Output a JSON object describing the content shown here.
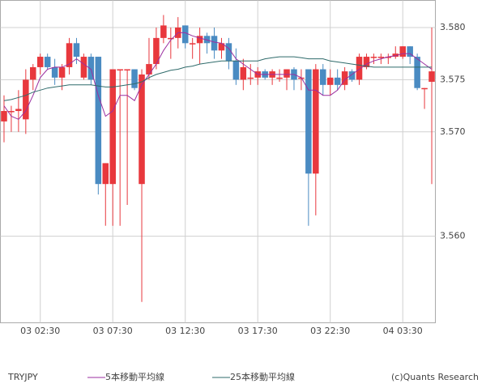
{
  "chart_data": {
    "type": "candlestick",
    "symbol": "TRYJPY",
    "credit": "(c)Quants Research",
    "up_color": "#e8383d",
    "down_color": "#4a8bc2",
    "categories": [
      null,
      null,
      null,
      null,
      null,
      "03 02:30",
      null,
      null,
      null,
      null,
      null,
      null,
      null,
      null,
      null,
      "03 07:30",
      null,
      null,
      null,
      null,
      null,
      null,
      null,
      null,
      null,
      "03 12:30",
      null,
      null,
      null,
      null,
      null,
      null,
      null,
      null,
      null,
      "03 17:30",
      null,
      null,
      null,
      null,
      null,
      null,
      null,
      null,
      null,
      "03 22:30",
      null,
      null,
      null,
      null,
      null,
      null,
      null,
      null,
      null,
      "04 03:30",
      null,
      null,
      null,
      null
    ],
    "open": [
      3.571,
      3.572,
      3.572,
      3.5712,
      3.575,
      3.5762,
      3.5772,
      3.5762,
      3.5752,
      3.5762,
      3.5785,
      3.5752,
      3.5772,
      3.5772,
      3.565,
      3.565,
      3.576,
      3.576,
      3.576,
      3.565,
      3.5755,
      3.5765,
      3.579,
      3.579,
      3.579,
      3.5802,
      3.5785,
      3.5785,
      3.5792,
      3.5792,
      3.5778,
      3.5785,
      3.5768,
      3.575,
      3.5752,
      3.5752,
      3.5758,
      3.5752,
      3.5752,
      3.5752,
      3.576,
      3.5752,
      3.576,
      3.566,
      3.576,
      3.5745,
      3.5752,
      3.5745,
      3.5758,
      3.575,
      3.5762,
      3.5772,
      3.5772,
      3.5772,
      3.5772,
      3.5772,
      3.5782,
      3.5772,
      3.5742,
      3.5748
    ],
    "high": [
      3.5735,
      3.5725,
      3.574,
      3.576,
      3.5765,
      3.5775,
      3.5775,
      3.577,
      3.5765,
      3.579,
      3.579,
      3.5775,
      3.5775,
      3.5772,
      3.567,
      3.576,
      3.576,
      3.576,
      3.576,
      3.576,
      3.579,
      3.58,
      3.5812,
      3.58,
      3.581,
      3.5802,
      3.579,
      3.58,
      3.5795,
      3.58,
      3.579,
      3.579,
      3.578,
      3.577,
      3.5765,
      3.5762,
      3.576,
      3.576,
      3.576,
      3.576,
      3.5762,
      3.576,
      3.576,
      3.5765,
      3.5765,
      3.576,
      3.576,
      3.5762,
      3.576,
      3.5775,
      3.5775,
      3.5775,
      3.5775,
      3.5775,
      3.5782,
      3.5782,
      3.5782,
      3.5775,
      3.5742,
      3.58
    ],
    "low": [
      3.569,
      3.57,
      3.57,
      3.5698,
      3.574,
      3.5755,
      3.576,
      3.5745,
      3.574,
      3.5755,
      3.5765,
      3.575,
      3.5745,
      3.564,
      3.561,
      3.561,
      3.561,
      3.563,
      3.574,
      3.5537,
      3.575,
      3.576,
      3.5785,
      3.577,
      3.578,
      3.578,
      3.577,
      3.5765,
      3.5775,
      3.577,
      3.577,
      3.576,
      3.5745,
      3.574,
      3.5745,
      3.5745,
      3.575,
      3.5745,
      3.5748,
      3.574,
      3.574,
      3.574,
      3.561,
      3.562,
      3.5735,
      3.5735,
      3.574,
      3.574,
      3.5748,
      3.5745,
      3.576,
      3.5765,
      3.5765,
      3.5765,
      3.577,
      3.577,
      3.5765,
      3.574,
      3.5722,
      3.565
    ],
    "close": [
      3.572,
      3.572,
      3.5722,
      3.575,
      3.5762,
      3.5772,
      3.5762,
      3.5752,
      3.5762,
      3.5785,
      3.5772,
      3.5772,
      3.575,
      3.565,
      3.567,
      3.576,
      3.576,
      3.576,
      3.5742,
      3.5755,
      3.5765,
      3.579,
      3.5802,
      3.579,
      3.58,
      3.5785,
      3.5785,
      3.5792,
      3.5785,
      3.5778,
      3.5785,
      3.5768,
      3.575,
      3.5762,
      3.5752,
      3.5758,
      3.5752,
      3.5758,
      3.5752,
      3.576,
      3.575,
      3.5752,
      3.566,
      3.576,
      3.5745,
      3.5752,
      3.5745,
      3.5758,
      3.575,
      3.5772,
      3.5772,
      3.5772,
      3.5772,
      3.5772,
      3.5775,
      3.5782,
      3.5772,
      3.5742,
      3.5742,
      3.5758
    ],
    "series": [
      {
        "name": "5本移動平均線",
        "color": "#9b2fa0",
        "values": [
          3.5725,
          3.5715,
          3.5712,
          3.572,
          3.5735,
          3.5752,
          3.576,
          3.5762,
          3.5762,
          3.5765,
          3.577,
          3.5765,
          3.576,
          3.5735,
          3.5715,
          3.572,
          3.5735,
          3.5735,
          3.573,
          3.5745,
          3.5755,
          3.5765,
          3.5778,
          3.5788,
          3.5795,
          3.5795,
          3.5792,
          3.579,
          3.5788,
          3.5786,
          3.5785,
          3.578,
          3.577,
          3.5765,
          3.576,
          3.5755,
          3.5755,
          3.5755,
          3.5755,
          3.5755,
          3.5755,
          3.5752,
          3.574,
          3.574,
          3.5735,
          3.5735,
          3.574,
          3.575,
          3.5755,
          3.576,
          3.5765,
          3.5768,
          3.577,
          3.5772,
          3.5773,
          3.5775,
          3.5775,
          3.577,
          3.5765,
          3.576
        ]
      },
      {
        "name": "25本移動平均線",
        "color": "#2f6b6b",
        "values": [
          3.573,
          3.5731,
          3.5733,
          3.5735,
          3.5738,
          3.574,
          3.5742,
          3.5743,
          3.5744,
          3.5745,
          3.5745,
          3.5745,
          3.5745,
          3.5744,
          3.5743,
          3.5743,
          3.5744,
          3.5745,
          3.5746,
          3.5748,
          3.5752,
          3.5755,
          3.5757,
          3.5759,
          3.576,
          3.5762,
          3.5763,
          3.5765,
          3.5766,
          3.5767,
          3.5768,
          3.5768,
          3.5768,
          3.5768,
          3.5768,
          3.5768,
          3.577,
          3.5771,
          3.5772,
          3.5772,
          3.5772,
          3.5771,
          3.577,
          3.577,
          3.577,
          3.5768,
          3.5767,
          3.5766,
          3.5765,
          3.5764,
          3.5763,
          3.5762,
          3.5762,
          3.5762,
          3.5762,
          3.5762,
          3.5762,
          3.5762,
          3.5762,
          3.5762
        ]
      }
    ],
    "ylim": [
      3.5517,
      3.5826
    ],
    "yticks": [
      {
        "value": 3.56,
        "label": "3.560"
      },
      {
        "value": 3.57,
        "label": "3.570"
      },
      3.575,
      {
        "value": 3.58,
        "label": "3.580"
      }
    ],
    "grid": true
  }
}
